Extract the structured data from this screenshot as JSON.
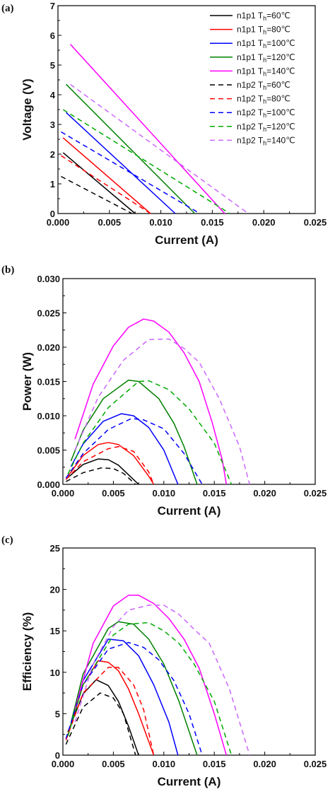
{
  "legend_unit": "℃",
  "chart_data": [
    {
      "panel": "(a)",
      "type": "line",
      "xlabel": "Current (A)",
      "ylabel": "Voltage (V)",
      "xlim": [
        0,
        0.025
      ],
      "ylim": [
        0,
        7
      ],
      "xticks": [
        "0.000",
        "0.005",
        "0.010",
        "0.015",
        "0.020",
        "0.025"
      ],
      "yticks": [
        "0",
        "1",
        "2",
        "3",
        "4",
        "5",
        "6",
        "7"
      ],
      "legend_position": "top-right",
      "series": [
        {
          "name": "n1p1 Th=60",
          "config": "n1p1",
          "th": "60",
          "color": "#000000",
          "dash": false,
          "x": [
            0.0005,
            0.0075
          ],
          "y": [
            2.05,
            0
          ]
        },
        {
          "name": "n1p1 Th=80",
          "config": "n1p1",
          "th": "80",
          "color": "#ff0000",
          "dash": false,
          "x": [
            0.0005,
            0.009
          ],
          "y": [
            2.55,
            0
          ]
        },
        {
          "name": "n1p1 Th=100",
          "config": "n1p1",
          "th": "100",
          "color": "#0000ff",
          "dash": false,
          "x": [
            0.0008,
            0.0114
          ],
          "y": [
            3.4,
            0
          ]
        },
        {
          "name": "n1p1 Th=120",
          "config": "n1p1",
          "th": "120",
          "color": "#008000",
          "dash": false,
          "x": [
            0.0008,
            0.0133
          ],
          "y": [
            4.35,
            0
          ]
        },
        {
          "name": "n1p1 Th=140",
          "config": "n1p1",
          "th": "140",
          "color": "#ff00ff",
          "dash": false,
          "x": [
            0.0012,
            0.0162
          ],
          "y": [
            5.7,
            0
          ]
        },
        {
          "name": "n1p2 Th=60",
          "config": "n1p2",
          "th": "60",
          "color": "#000000",
          "dash": true,
          "x": [
            0.0003,
            0.0072
          ],
          "y": [
            1.25,
            0
          ]
        },
        {
          "name": "n1p2 Th=80",
          "config": "n1p2",
          "th": "80",
          "color": "#ff0000",
          "dash": true,
          "x": [
            0.0003,
            0.009
          ],
          "y": [
            1.95,
            0
          ]
        },
        {
          "name": "n1p2 Th=100",
          "config": "n1p2",
          "th": "100",
          "color": "#0000ff",
          "dash": true,
          "x": [
            0.0003,
            0.0138
          ],
          "y": [
            2.75,
            0
          ]
        },
        {
          "name": "n1p2 Th=120",
          "config": "n1p2",
          "th": "120",
          "color": "#00aa00",
          "dash": true,
          "x": [
            0.0005,
            0.0167
          ],
          "y": [
            3.5,
            0
          ]
        },
        {
          "name": "n1p2 Th=140",
          "config": "n1p2",
          "th": "140",
          "color": "#cc66ff",
          "dash": true,
          "x": [
            0.0012,
            0.0185
          ],
          "y": [
            4.35,
            0
          ]
        }
      ]
    },
    {
      "panel": "(b)",
      "type": "line",
      "xlabel": "Current (A)",
      "ylabel": "Power (W)",
      "xlim": [
        0,
        0.025
      ],
      "ylim": [
        0,
        0.03
      ],
      "xticks": [
        "0.000",
        "0.005",
        "0.010",
        "0.015",
        "0.020",
        "0.025"
      ],
      "yticks": [
        "0.000",
        "0.005",
        "0.010",
        "0.015",
        "0.020",
        "0.025",
        "0.030"
      ],
      "series": [
        {
          "name": "n1p1 Th=60",
          "color": "#000000",
          "dash": false,
          "x": [
            0.0005,
            0.002,
            0.0035,
            0.0045,
            0.0055,
            0.0065,
            0.0075
          ],
          "y": [
            0.001,
            0.0029,
            0.0037,
            0.0036,
            0.0028,
            0.0014,
            0.0
          ]
        },
        {
          "name": "n1p1 Th=80",
          "color": "#ff0000",
          "dash": false,
          "x": [
            0.0005,
            0.002,
            0.0035,
            0.0045,
            0.0055,
            0.007,
            0.0085,
            0.009
          ],
          "y": [
            0.0012,
            0.0042,
            0.0058,
            0.0061,
            0.0058,
            0.0042,
            0.0012,
            0.0
          ]
        },
        {
          "name": "n1p1 Th=100",
          "color": "#0000ff",
          "dash": false,
          "x": [
            0.0008,
            0.002,
            0.004,
            0.0058,
            0.007,
            0.0085,
            0.01,
            0.0114
          ],
          "y": [
            0.0026,
            0.0059,
            0.0092,
            0.0103,
            0.01,
            0.0083,
            0.005,
            0.0
          ]
        },
        {
          "name": "n1p1 Th=120",
          "color": "#008000",
          "dash": false,
          "x": [
            0.0008,
            0.002,
            0.004,
            0.0065,
            0.0075,
            0.0095,
            0.011,
            0.012,
            0.0133
          ],
          "y": [
            0.0034,
            0.0079,
            0.0125,
            0.0152,
            0.015,
            0.0125,
            0.0089,
            0.0055,
            0.0
          ]
        },
        {
          "name": "n1p1 Th=140",
          "color": "#ff00ff",
          "dash": false,
          "x": [
            0.0012,
            0.003,
            0.005,
            0.0065,
            0.008,
            0.009,
            0.0105,
            0.012,
            0.0135,
            0.0148,
            0.0158,
            0.0162
          ],
          "y": [
            0.0066,
            0.0146,
            0.0202,
            0.0229,
            0.0241,
            0.0238,
            0.0222,
            0.0192,
            0.015,
            0.009,
            0.0035,
            0.0
          ]
        },
        {
          "name": "n1p2 Th=60",
          "color": "#000000",
          "dash": true,
          "x": [
            0.0003,
            0.002,
            0.0038,
            0.005,
            0.006,
            0.0072
          ],
          "y": [
            0.0004,
            0.0017,
            0.0024,
            0.0023,
            0.0016,
            0.0
          ]
        },
        {
          "name": "n1p2 Th=80",
          "color": "#ff0000",
          "dash": true,
          "x": [
            0.0003,
            0.002,
            0.0045,
            0.0055,
            0.007,
            0.0085,
            0.009
          ],
          "y": [
            0.0007,
            0.0033,
            0.0052,
            0.0055,
            0.0048,
            0.0018,
            0.0
          ]
        },
        {
          "name": "n1p2 Th=100",
          "color": "#0000ff",
          "dash": true,
          "x": [
            0.0003,
            0.002,
            0.0045,
            0.0068,
            0.008,
            0.01,
            0.012,
            0.0138
          ],
          "y": [
            0.0009,
            0.0045,
            0.008,
            0.0096,
            0.0094,
            0.0081,
            0.0045,
            0.0
          ]
        },
        {
          "name": "n1p2 Th=120",
          "color": "#00aa00",
          "dash": true,
          "x": [
            0.0005,
            0.002,
            0.0045,
            0.0075,
            0.0085,
            0.0105,
            0.0125,
            0.015,
            0.0167
          ],
          "y": [
            0.0015,
            0.006,
            0.0112,
            0.015,
            0.0151,
            0.0138,
            0.011,
            0.006,
            0.0
          ]
        },
        {
          "name": "n1p2 Th=140",
          "color": "#cc66ff",
          "dash": true,
          "x": [
            0.0012,
            0.0035,
            0.006,
            0.0085,
            0.0105,
            0.012,
            0.0135,
            0.0155,
            0.0175,
            0.0185
          ],
          "y": [
            0.005,
            0.0127,
            0.0181,
            0.0211,
            0.0212,
            0.0198,
            0.0178,
            0.0125,
            0.0055,
            0.0
          ]
        }
      ]
    },
    {
      "panel": "(c)",
      "type": "line",
      "xlabel": "Current (A)",
      "ylabel": "Efficiency (%)",
      "xlim": [
        0,
        0.025
      ],
      "ylim": [
        0,
        25
      ],
      "xticks": [
        "0.000",
        "0.005",
        "0.010",
        "0.015",
        "0.020",
        "0.025"
      ],
      "yticks": [
        "0",
        "5",
        "10",
        "15",
        "20",
        "25"
      ],
      "series": [
        {
          "name": "n1p1 Th=60",
          "color": "#000000",
          "dash": false,
          "x": [
            0.0005,
            0.002,
            0.0033,
            0.0045,
            0.0055,
            0.0065,
            0.0075
          ],
          "y": [
            2.8,
            7.4,
            9.1,
            8.4,
            6.5,
            3.5,
            0.0
          ]
        },
        {
          "name": "n1p1 Th=80",
          "color": "#ff0000",
          "dash": false,
          "x": [
            0.0005,
            0.002,
            0.0035,
            0.0045,
            0.0055,
            0.0065,
            0.0075,
            0.009
          ],
          "y": [
            2.5,
            8.5,
            11.4,
            11.2,
            10.2,
            8.0,
            5.0,
            0.0
          ]
        },
        {
          "name": "n1p1 Th=100",
          "color": "#0000ff",
          "dash": false,
          "x": [
            0.0008,
            0.002,
            0.0045,
            0.006,
            0.0075,
            0.009,
            0.0105,
            0.0114
          ],
          "y": [
            3.8,
            9.0,
            14.0,
            13.8,
            12.0,
            8.5,
            4.0,
            0.0
          ]
        },
        {
          "name": "n1p1 Th=120",
          "color": "#008000",
          "dash": false,
          "x": [
            0.0008,
            0.002,
            0.0045,
            0.0055,
            0.007,
            0.0085,
            0.01,
            0.0115,
            0.0133
          ],
          "y": [
            3.9,
            9.8,
            15.3,
            16.1,
            15.8,
            14.0,
            11.0,
            6.5,
            0.0
          ]
        },
        {
          "name": "n1p1 Th=140",
          "color": "#ff00ff",
          "dash": false,
          "x": [
            0.0012,
            0.003,
            0.005,
            0.0065,
            0.0075,
            0.009,
            0.0105,
            0.012,
            0.0135,
            0.015,
            0.0162
          ],
          "y": [
            5.5,
            13.5,
            18.0,
            19.3,
            19.3,
            18.3,
            16.5,
            14.0,
            10.5,
            5.0,
            0.0
          ]
        },
        {
          "name": "n1p2 Th=60",
          "color": "#000000",
          "dash": true,
          "x": [
            0.0003,
            0.002,
            0.0037,
            0.005,
            0.006,
            0.0072
          ],
          "y": [
            1.3,
            5.8,
            7.5,
            6.9,
            5.0,
            0.0
          ]
        },
        {
          "name": "n1p2 Th=80",
          "color": "#ff0000",
          "dash": true,
          "x": [
            0.0003,
            0.002,
            0.0045,
            0.0055,
            0.007,
            0.008,
            0.009
          ],
          "y": [
            1.8,
            7.5,
            10.6,
            10.6,
            8.5,
            5.5,
            0.0
          ]
        },
        {
          "name": "n1p2 Th=100",
          "color": "#0000ff",
          "dash": true,
          "x": [
            0.0003,
            0.002,
            0.0045,
            0.0065,
            0.008,
            0.0095,
            0.011,
            0.0125,
            0.0138
          ],
          "y": [
            2.0,
            8.5,
            12.8,
            13.6,
            13.0,
            11.5,
            9.0,
            5.0,
            0.0
          ]
        },
        {
          "name": "n1p2 Th=120",
          "color": "#00aa00",
          "dash": true,
          "x": [
            0.0005,
            0.002,
            0.005,
            0.0065,
            0.0085,
            0.01,
            0.0115,
            0.013,
            0.015,
            0.0167
          ],
          "y": [
            2.3,
            8.5,
            14.5,
            15.8,
            16.0,
            15.0,
            13.5,
            11.0,
            6.5,
            0.0
          ]
        },
        {
          "name": "n1p2 Th=140",
          "color": "#cc66ff",
          "dash": true,
          "x": [
            0.0012,
            0.003,
            0.005,
            0.0065,
            0.0085,
            0.01,
            0.0115,
            0.013,
            0.0145,
            0.0165,
            0.0185
          ],
          "y": [
            4.0,
            11.0,
            15.5,
            17.5,
            18.1,
            18.1,
            17.0,
            15.2,
            13.5,
            8.0,
            0.0
          ]
        }
      ]
    }
  ]
}
